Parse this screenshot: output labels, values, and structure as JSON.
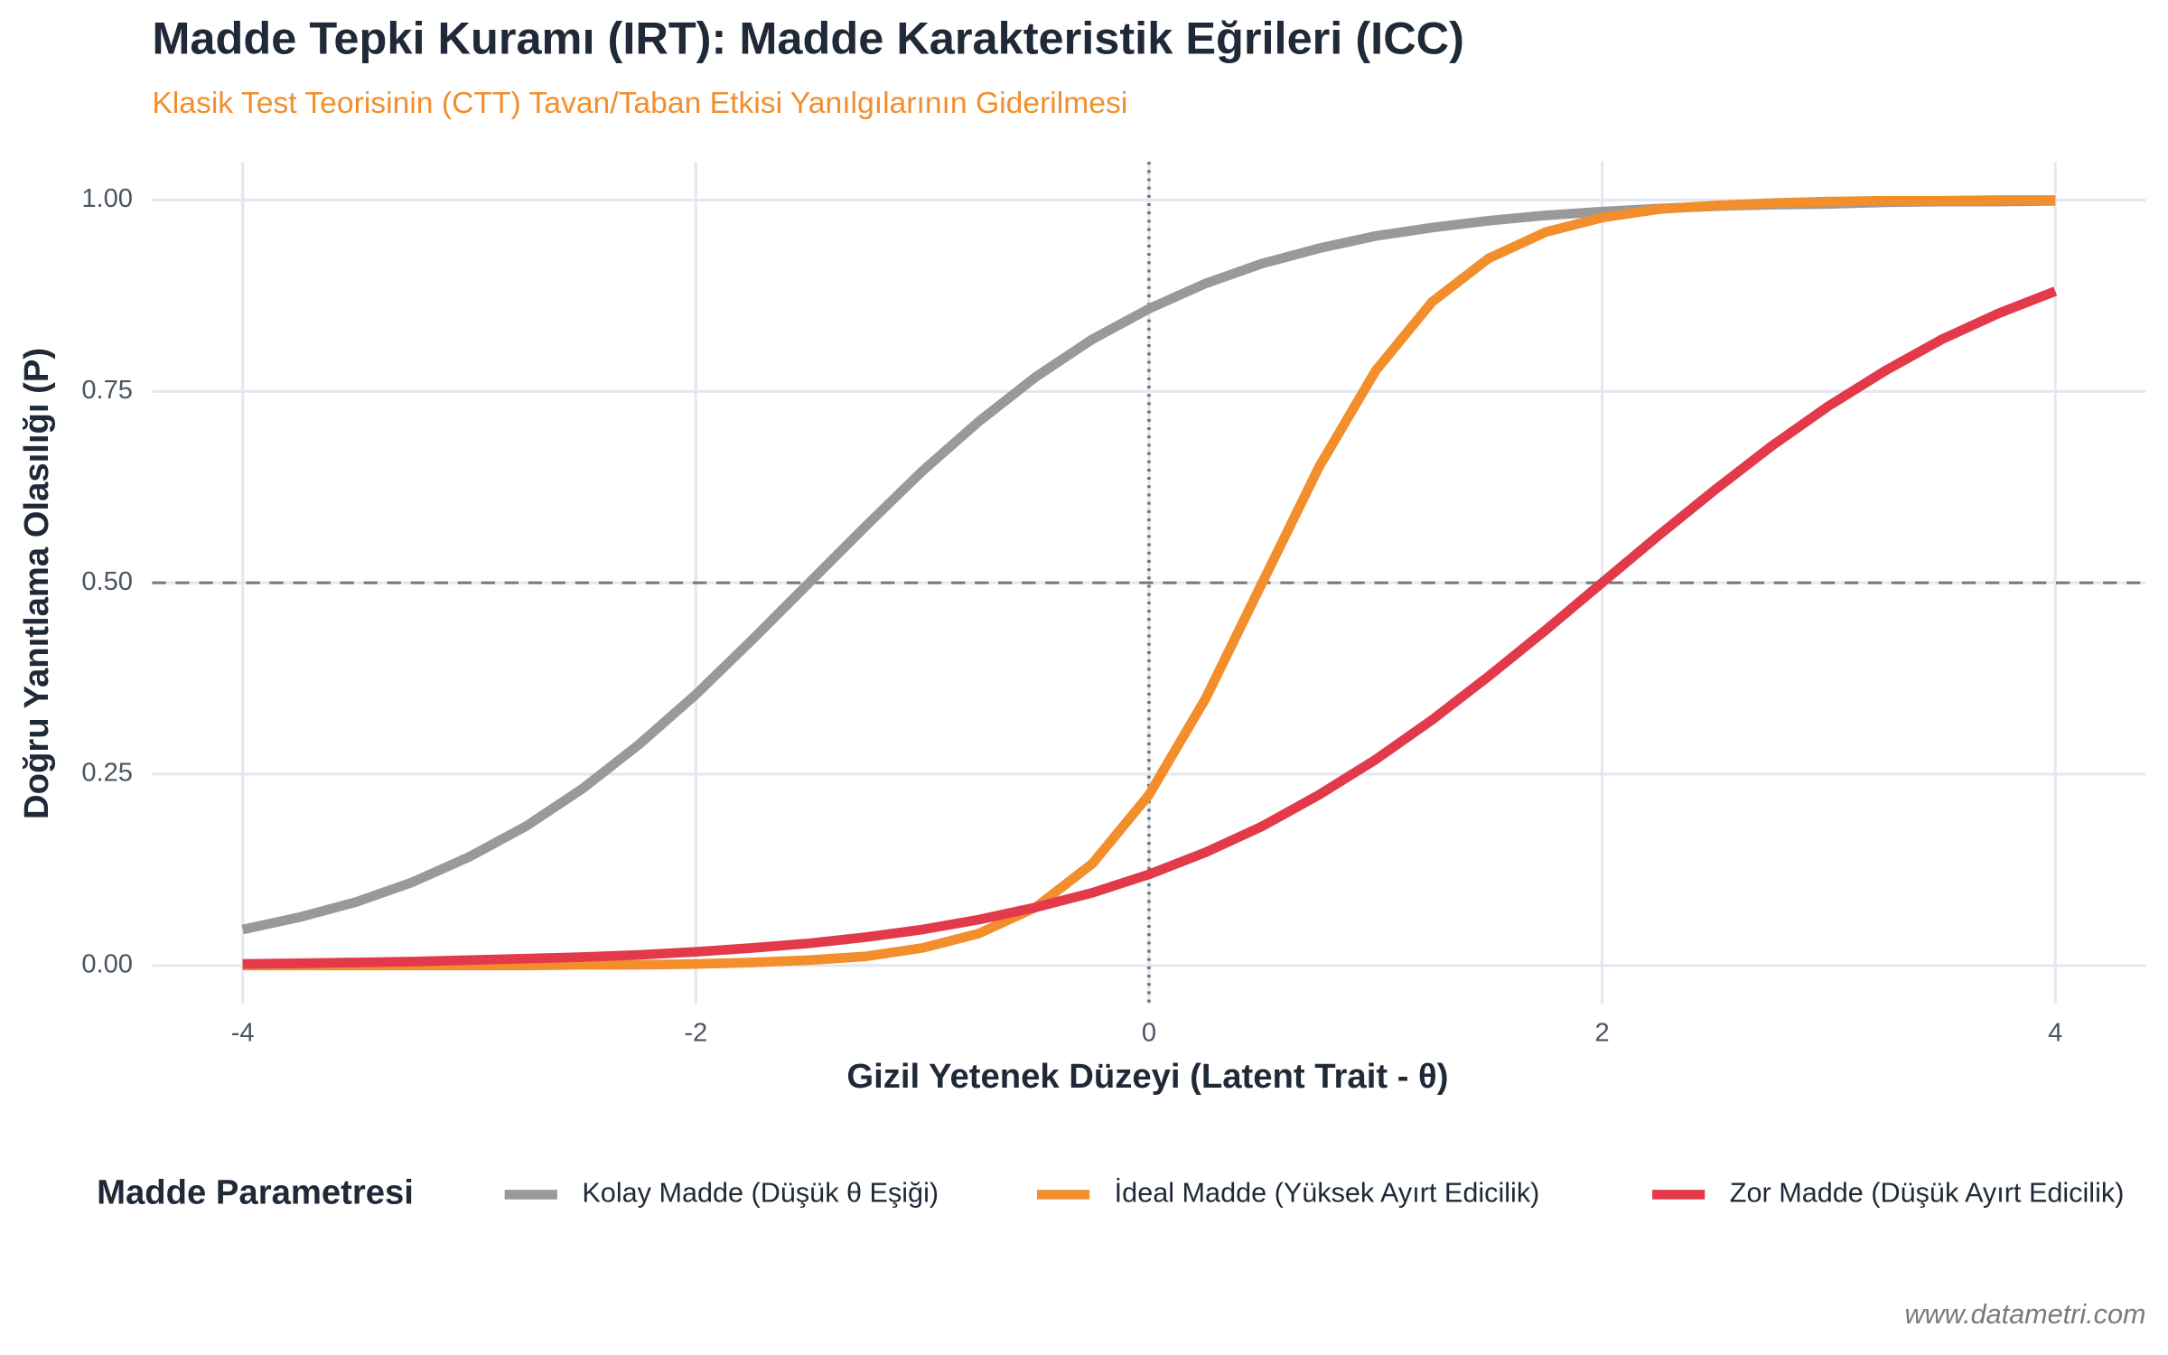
{
  "chart_data": {
    "type": "line",
    "title": "Madde Tepki Kuramı (IRT): Madde Karakteristik Eğrileri (ICC)",
    "subtitle": "Klasik Test Teorisinin (CTT) Tavan/Taban Etkisi Yanılgılarının Giderilmesi",
    "x_label": "Gizil Yetenek Düzeyi (Latent Trait - θ)",
    "y_label": "Doğru Yanıtlama Olasılığı (P)",
    "legend_title": "Madde Parametresi",
    "legend_position": "bottom",
    "caption": "www.datametri.com",
    "grid": true,
    "xlim": [
      -4.4,
      4.4
    ],
    "ylim": [
      -0.05,
      1.05
    ],
    "xticks": [
      -4,
      -2,
      0,
      2,
      4
    ],
    "yticks": [
      {
        "value": 0,
        "label": "0.00"
      },
      {
        "value": 0.25,
        "label": "0.25"
      },
      {
        "value": 0.5,
        "label": "0.50"
      },
      {
        "value": 0.75,
        "label": "0.75"
      },
      {
        "value": 1,
        "label": "1.00"
      }
    ],
    "hline": 0.5,
    "vline": 0,
    "x": [
      -4,
      -3.75,
      -3.5,
      -3.25,
      -3,
      -2.75,
      -2.5,
      -2.25,
      -2,
      -1.75,
      -1.5,
      -1.25,
      -1,
      -0.75,
      -0.5,
      -0.25,
      0,
      0.25,
      0.5,
      0.75,
      1,
      1.25,
      1.5,
      1.75,
      2,
      2.25,
      2.5,
      2.75,
      3,
      3.25,
      3.5,
      3.75,
      4
    ],
    "series": [
      {
        "name": "Kolay Madde (Düşük θ Eşiği)",
        "color": "#999999",
        "values": [
          0.047,
          0.063,
          0.083,
          0.109,
          0.142,
          0.182,
          0.231,
          0.289,
          0.354,
          0.426,
          0.5,
          0.574,
          0.646,
          0.711,
          0.769,
          0.818,
          0.858,
          0.891,
          0.917,
          0.937,
          0.953,
          0.964,
          0.973,
          0.98,
          0.985,
          0.989,
          0.992,
          0.994,
          0.995,
          0.997,
          0.998,
          0.998,
          0.999
        ]
      },
      {
        "name": "İdeal Madde (Yüksek Ayırt Edicilik)",
        "color": "#f28e2b",
        "values": [
          0,
          0,
          0,
          0,
          0,
          0,
          0.001,
          0.001,
          0.002,
          0.004,
          0.007,
          0.012,
          0.023,
          0.042,
          0.076,
          0.133,
          0.223,
          0.349,
          0.5,
          0.651,
          0.777,
          0.867,
          0.924,
          0.958,
          0.977,
          0.988,
          0.993,
          0.996,
          0.998,
          0.999,
          0.999,
          1,
          1
        ]
      },
      {
        "name": "Zor Madde (Düşük Ayırt Edicilik)",
        "color": "#e23a4a",
        "values": [
          0.002,
          0.003,
          0.004,
          0.005,
          0.007,
          0.009,
          0.011,
          0.014,
          0.018,
          0.023,
          0.029,
          0.037,
          0.047,
          0.06,
          0.076,
          0.095,
          0.119,
          0.148,
          0.182,
          0.223,
          0.269,
          0.321,
          0.378,
          0.438,
          0.5,
          0.562,
          0.622,
          0.679,
          0.731,
          0.777,
          0.818,
          0.852,
          0.881
        ]
      }
    ]
  }
}
